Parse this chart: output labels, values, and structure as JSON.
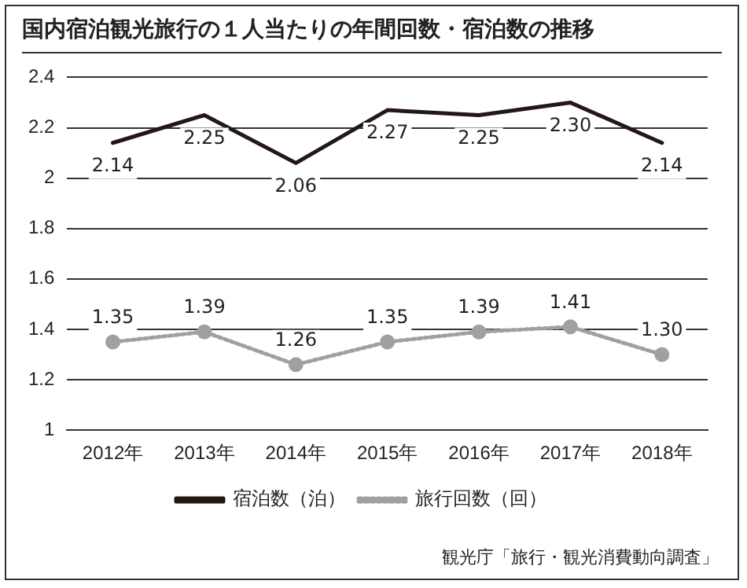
{
  "chart_data": {
    "type": "line",
    "title": "国内宿泊観光旅行の１人当たりの年間回数・宿泊数の推移",
    "categories": [
      "2012年",
      "2013年",
      "2014年",
      "2015年",
      "2016年",
      "2017年",
      "2018年"
    ],
    "series": [
      {
        "name": "宿泊数（泊）",
        "color": "#231815",
        "values": [
          2.14,
          2.25,
          2.06,
          2.27,
          2.25,
          2.3,
          2.14
        ],
        "value_labels": [
          "2.14",
          "2.25",
          "2.06",
          "2.27",
          "2.25",
          "2.30",
          "2.14"
        ],
        "marker": "none",
        "line_style": "solid"
      },
      {
        "name": "旅行回数（回）",
        "color": "#a0a0a0",
        "values": [
          1.35,
          1.39,
          1.26,
          1.35,
          1.39,
          1.41,
          1.3
        ],
        "value_labels": [
          "1.35",
          "1.39",
          "1.26",
          "1.35",
          "1.39",
          "1.41",
          "1.30"
        ],
        "marker": "circle",
        "line_style": "dotted"
      }
    ],
    "ylim": [
      1,
      2.4
    ],
    "yticks": [
      1,
      1.2,
      1.4,
      1.6,
      1.8,
      2,
      2.2,
      2.4
    ],
    "grid": "y",
    "legend": "bottom",
    "annotations": [
      "観光庁「旅行・観光消費動向調査」"
    ]
  }
}
